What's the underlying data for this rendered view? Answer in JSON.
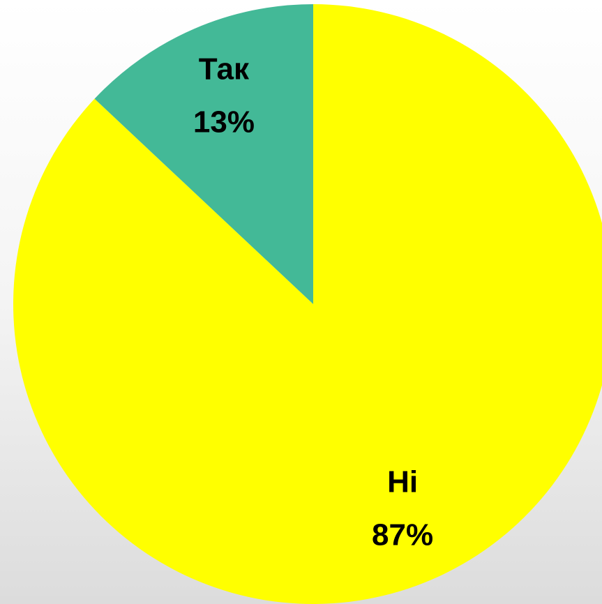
{
  "chart_data": {
    "type": "pie",
    "categories": [
      "Ні",
      "Так"
    ],
    "values": [
      87,
      13
    ],
    "value_labels": [
      "87%",
      "13%"
    ],
    "colors": [
      "#ffff00",
      "#43b997"
    ]
  }
}
